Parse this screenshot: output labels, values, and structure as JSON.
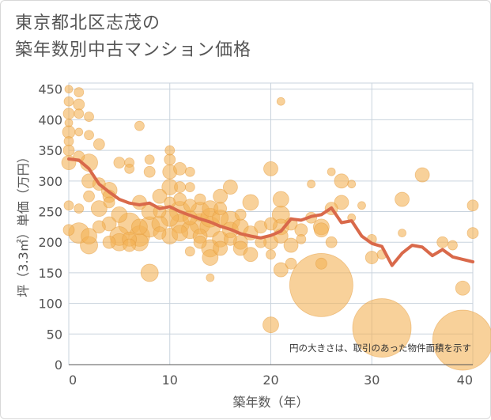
{
  "title_lines": [
    "東京都北区志茂の",
    "築年数別中古マンション価格"
  ],
  "chart_data": {
    "type": "scatter",
    "title": "東京都北区志茂の 築年数別中古マンション価格",
    "xlabel": "築年数（年）",
    "ylabel": "坪（3.3㎡）単価（万円）",
    "xlim": [
      0,
      40
    ],
    "ylim": [
      0,
      460
    ],
    "xticks": [
      0,
      10,
      20,
      30,
      40
    ],
    "yticks": [
      0,
      50,
      100,
      150,
      200,
      250,
      300,
      350,
      400,
      450
    ],
    "grid": true,
    "note": "円の大きさは、取引のあった物件面積を示す",
    "colors": {
      "bubble": "#f3b257",
      "line": "#d9694a",
      "grid": "#c9d3dd"
    },
    "series": [
      {
        "type": "bubble",
        "points": [
          [
            0,
            450,
            5
          ],
          [
            0,
            430,
            6
          ],
          [
            0,
            410,
            7
          ],
          [
            0,
            395,
            5
          ],
          [
            0,
            380,
            8
          ],
          [
            0,
            365,
            6
          ],
          [
            0,
            350,
            7
          ],
          [
            0,
            330,
            9
          ],
          [
            0,
            260,
            6
          ],
          [
            0,
            220,
            7
          ],
          [
            1,
            445,
            6
          ],
          [
            1,
            425,
            7
          ],
          [
            1,
            410,
            6
          ],
          [
            1,
            380,
            5
          ],
          [
            1,
            340,
            7
          ],
          [
            1,
            255,
            6
          ],
          [
            1,
            215,
            13
          ],
          [
            2,
            405,
            6
          ],
          [
            2,
            375,
            6
          ],
          [
            2,
            330,
            11
          ],
          [
            2,
            300,
            9
          ],
          [
            2,
            275,
            7
          ],
          [
            2,
            210,
            10
          ],
          [
            2,
            195,
            11
          ],
          [
            3,
            360,
            7
          ],
          [
            3,
            295,
            8
          ],
          [
            3,
            255,
            10
          ],
          [
            3,
            225,
            8
          ],
          [
            4,
            285,
            10
          ],
          [
            4,
            275,
            8
          ],
          [
            4,
            265,
            7
          ],
          [
            4,
            230,
            9
          ],
          [
            4,
            200,
            8
          ],
          [
            5,
            330,
            7
          ],
          [
            5,
            245,
            10
          ],
          [
            5,
            210,
            12
          ],
          [
            5,
            200,
            11
          ],
          [
            6,
            330,
            6
          ],
          [
            6,
            320,
            6
          ],
          [
            6,
            230,
            14
          ],
          [
            6,
            205,
            9
          ],
          [
            6,
            195,
            8
          ],
          [
            7,
            390,
            6
          ],
          [
            7,
            265,
            9
          ],
          [
            7,
            225,
            10
          ],
          [
            7,
            210,
            13
          ],
          [
            7,
            200,
            11
          ],
          [
            8,
            335,
            6
          ],
          [
            8,
            315,
            7
          ],
          [
            8,
            250,
            10
          ],
          [
            8,
            225,
            13
          ],
          [
            8,
            150,
            11
          ],
          [
            9,
            275,
            9
          ],
          [
            9,
            250,
            8
          ],
          [
            9,
            230,
            10
          ],
          [
            9,
            215,
            8
          ],
          [
            10,
            350,
            6
          ],
          [
            10,
            335,
            7
          ],
          [
            10,
            315,
            9
          ],
          [
            10,
            290,
            10
          ],
          [
            10,
            265,
            7
          ],
          [
            10,
            240,
            11
          ],
          [
            10,
            210,
            10
          ],
          [
            11,
            320,
            8
          ],
          [
            11,
            290,
            7
          ],
          [
            11,
            270,
            8
          ],
          [
            11,
            250,
            13
          ],
          [
            11,
            230,
            12
          ],
          [
            11,
            215,
            10
          ],
          [
            12,
            315,
            6
          ],
          [
            12,
            290,
            6
          ],
          [
            12,
            260,
            8
          ],
          [
            12,
            240,
            9
          ],
          [
            12,
            220,
            11
          ],
          [
            12,
            185,
            6
          ],
          [
            13,
            270,
            7
          ],
          [
            13,
            250,
            12
          ],
          [
            13,
            230,
            13
          ],
          [
            13,
            210,
            9
          ],
          [
            13,
            200,
            8
          ],
          [
            14,
            255,
            10
          ],
          [
            14,
            240,
            12
          ],
          [
            14,
            225,
            13
          ],
          [
            14,
            190,
            11
          ],
          [
            14,
            175,
            10
          ],
          [
            14,
            142,
            5
          ],
          [
            15,
            275,
            9
          ],
          [
            15,
            255,
            8
          ],
          [
            15,
            240,
            10
          ],
          [
            15,
            205,
            10
          ],
          [
            15,
            190,
            9
          ],
          [
            16,
            290,
            9
          ],
          [
            16,
            235,
            12
          ],
          [
            16,
            220,
            10
          ],
          [
            16,
            205,
            8
          ],
          [
            17,
            245,
            7
          ],
          [
            17,
            225,
            10
          ],
          [
            17,
            200,
            9
          ],
          [
            17,
            190,
            9
          ],
          [
            18,
            265,
            10
          ],
          [
            18,
            215,
            9
          ],
          [
            18,
            180,
            9
          ],
          [
            19,
            225,
            8
          ],
          [
            19,
            200,
            7
          ],
          [
            20,
            320,
            9
          ],
          [
            20,
            230,
            8
          ],
          [
            20,
            200,
            9
          ],
          [
            20,
            180,
            6
          ],
          [
            20,
            65,
            10
          ],
          [
            21,
            430,
            5
          ],
          [
            21,
            270,
            10
          ],
          [
            21,
            245,
            11
          ],
          [
            21,
            225,
            10
          ],
          [
            21,
            210,
            9
          ],
          [
            21,
            155,
            9
          ],
          [
            22,
            230,
            8
          ],
          [
            22,
            195,
            9
          ],
          [
            22,
            165,
            7
          ],
          [
            23,
            220,
            8
          ],
          [
            23,
            205,
            6
          ],
          [
            24,
            295,
            5
          ],
          [
            24,
            240,
            7
          ],
          [
            25,
            225,
            10
          ],
          [
            25,
            220,
            9
          ],
          [
            25,
            165,
            7
          ],
          [
            25,
            130,
            40
          ],
          [
            26,
            315,
            5
          ],
          [
            26,
            255,
            8
          ],
          [
            26,
            200,
            7
          ],
          [
            27,
            300,
            9
          ],
          [
            27,
            265,
            9
          ],
          [
            28,
            295,
            5
          ],
          [
            28,
            240,
            5
          ],
          [
            29,
            260,
            5
          ],
          [
            30,
            205,
            6
          ],
          [
            30,
            175,
            8
          ],
          [
            31,
            180,
            6
          ],
          [
            31,
            60,
            37
          ],
          [
            33,
            270,
            9
          ],
          [
            33,
            215,
            5
          ],
          [
            35,
            310,
            9
          ],
          [
            37,
            200,
            7
          ],
          [
            38,
            195,
            6
          ],
          [
            39,
            125,
            9
          ],
          [
            39,
            40,
            38
          ],
          [
            40,
            260,
            7
          ],
          [
            40,
            215,
            7
          ]
        ]
      },
      {
        "type": "line",
        "x": [
          0,
          1,
          2,
          3,
          4,
          5,
          6,
          7,
          8,
          9,
          10,
          11,
          12,
          13,
          14,
          15,
          16,
          17,
          18,
          19,
          20,
          21,
          22,
          23,
          24,
          25,
          26,
          27,
          28,
          29,
          30,
          31,
          32,
          33,
          34,
          35,
          36,
          37,
          38,
          39,
          40
        ],
        "y": [
          336,
          334,
          320,
          295,
          282,
          270,
          264,
          261,
          264,
          255,
          258,
          250,
          244,
          238,
          233,
          226,
          221,
          214,
          210,
          207,
          211,
          218,
          238,
          236,
          242,
          245,
          256,
          232,
          235,
          210,
          198,
          193,
          162,
          182,
          195,
          192,
          178,
          188,
          176,
          172,
          168
        ]
      }
    ]
  }
}
